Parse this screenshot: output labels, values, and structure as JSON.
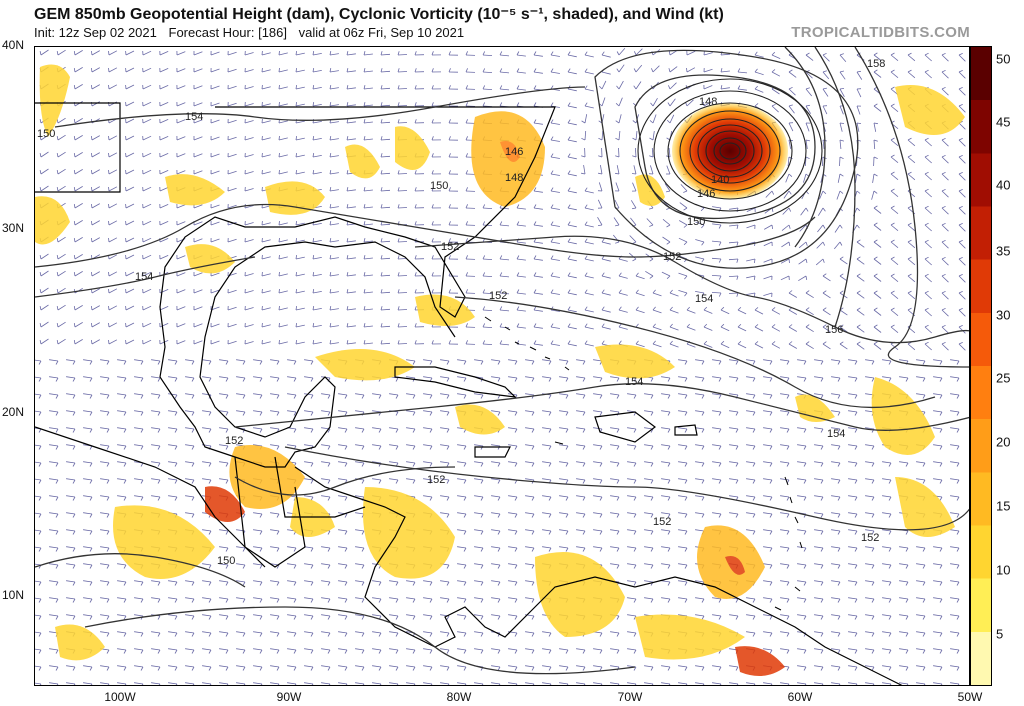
{
  "header": {
    "title": "GEM 850mb Geopotential Height (dam), Cyclonic Vorticity (10⁻⁵ s⁻¹, shaded), and Wind (kt)",
    "init": "Init: 12z Sep 02 2021",
    "forecast_hour": "Forecast Hour: [186]",
    "valid": "valid at 06z Fri, Sep 10 2021",
    "brand": "TROPICALTIDBITS.COM"
  },
  "map": {
    "lat_labels": [
      "40N",
      "30N",
      "20N",
      "10N"
    ],
    "lon_labels": [
      "100W",
      "90W",
      "80W",
      "70W",
      "60W",
      "50W"
    ],
    "contour_labels": [
      "154",
      "154",
      "150",
      "150",
      "146",
      "148",
      "152",
      "152",
      "154",
      "154",
      "154",
      "156",
      "158",
      "148",
      "146",
      "150",
      "140",
      "152",
      "152",
      "152",
      "152",
      "150",
      "152"
    ]
  },
  "colorbar": {
    "ticks": [
      "50",
      "45",
      "40",
      "35",
      "30",
      "25",
      "20",
      "15",
      "10",
      "5"
    ],
    "colors": [
      "#fff9b0",
      "#ffee55",
      "#ffd530",
      "#ffba22",
      "#ff9d18",
      "#ff7f10",
      "#f55a0a",
      "#e03a06",
      "#c21f04",
      "#a00d02",
      "#7e0400",
      "#5a0000"
    ]
  }
}
